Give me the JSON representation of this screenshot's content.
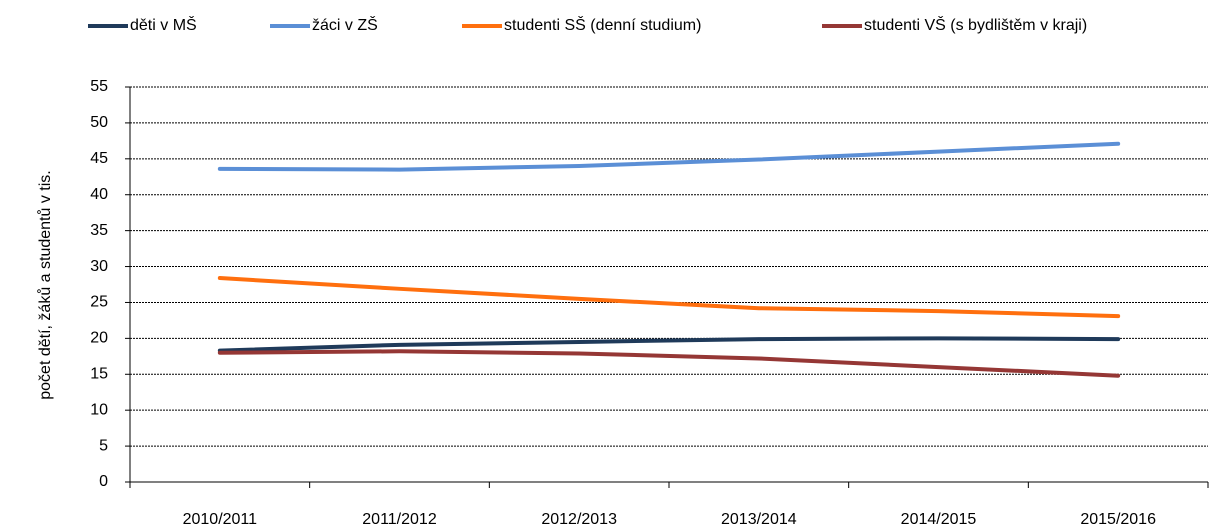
{
  "chart_data": {
    "type": "line",
    "y_label": "počet dětí, žáků a studentů v tis.",
    "categories": [
      "2010/2011",
      "2011/2012",
      "2012/2013",
      "2013/2014",
      "2014/2015",
      "2015/2016"
    ],
    "series": [
      {
        "name": "děti v MŠ",
        "color": "#1f3a5a",
        "values": [
          18.3,
          19.1,
          19.5,
          19.9,
          20.0,
          19.9
        ]
      },
      {
        "name": "žáci v ZŠ",
        "color": "#5b8fd6",
        "values": [
          43.6,
          43.5,
          44.0,
          44.9,
          46.0,
          47.1
        ]
      },
      {
        "name": "studenti SŠ (denní studium)",
        "color": "#ff6f0e",
        "values": [
          28.4,
          26.9,
          25.5,
          24.2,
          23.8,
          23.1
        ]
      },
      {
        "name": "studenti VŠ (s bydlištěm v kraji)",
        "color": "#953735",
        "values": [
          18.0,
          18.2,
          17.9,
          17.2,
          16.0,
          14.8
        ]
      }
    ],
    "ylim": [
      0,
      55
    ],
    "yticks": [
      0,
      5,
      10,
      15,
      20,
      25,
      30,
      35,
      40,
      45,
      50,
      55
    ],
    "grid": true,
    "legend": "top"
  }
}
